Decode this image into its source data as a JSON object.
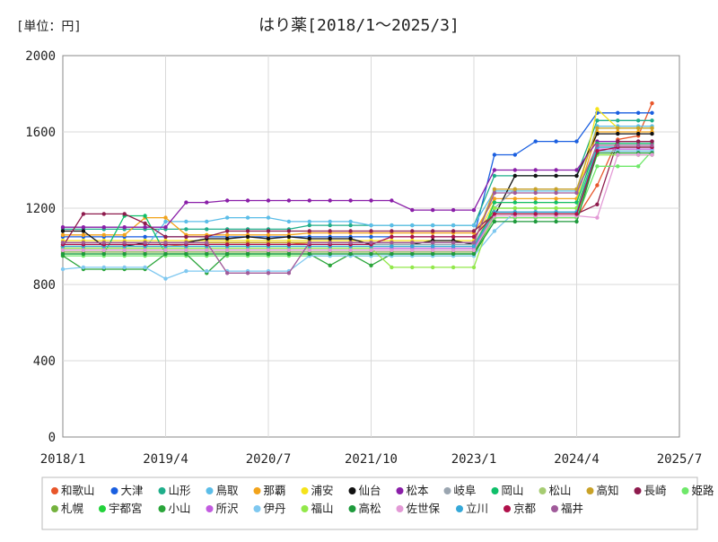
{
  "chart_data": {
    "type": "line",
    "title": "はり薬[2018/1～2025/3]",
    "unit_label": "[単位：円]",
    "xlabel": "",
    "ylabel": "",
    "ylim": [
      0,
      2000
    ],
    "y_ticks": [
      "0",
      "400",
      "800",
      "1200",
      "1600",
      "2000"
    ],
    "x_ticks": [
      "2018/1",
      "2019/4",
      "2020/7",
      "2021/10",
      "2023/1",
      "2024/4",
      "2025/7"
    ],
    "x_range": [
      "2018/1",
      "2025/7"
    ],
    "grid": true,
    "legend_position": "bottom",
    "x": [
      "2018/1",
      "2018/4",
      "2018/7",
      "2018/10",
      "2019/1",
      "2019/4",
      "2019/7",
      "2019/10",
      "2020/1",
      "2020/4",
      "2020/7",
      "2020/10",
      "2021/1",
      "2021/4",
      "2021/7",
      "2021/10",
      "2022/1",
      "2022/4",
      "2022/7",
      "2022/10",
      "2023/1",
      "2023/4",
      "2023/7",
      "2023/10",
      "2024/1",
      "2024/4",
      "2024/7",
      "2024/10",
      "2025/1",
      "2025/3"
    ],
    "series": [
      {
        "name": "和歌山",
        "color": "#e8562a",
        "values": [
          1000,
          1000,
          1000,
          1000,
          1000,
          1000,
          1010,
          1010,
          1010,
          1010,
          1010,
          1010,
          1020,
          1020,
          1020,
          1020,
          1020,
          1020,
          1020,
          1020,
          1020,
          1150,
          1150,
          1150,
          1150,
          1150,
          1320,
          1560,
          1580,
          1750
        ]
      },
      {
        "name": "大津",
        "color": "#1a5fe0",
        "values": [
          1050,
          1050,
          1050,
          1050,
          1050,
          1050,
          1050,
          1050,
          1050,
          1050,
          1050,
          1050,
          1050,
          1050,
          1050,
          1050,
          1050,
          1050,
          1050,
          1050,
          1050,
          1480,
          1480,
          1550,
          1550,
          1550,
          1700,
          1700,
          1700,
          1700
        ]
      },
      {
        "name": "山形",
        "color": "#1fae8a",
        "values": [
          1090,
          1090,
          1090,
          1090,
          1090,
          1090,
          1090,
          1090,
          1090,
          1090,
          1090,
          1090,
          1110,
          1110,
          1110,
          1110,
          1110,
          1110,
          1110,
          1110,
          1110,
          1370,
          1370,
          1370,
          1370,
          1370,
          1660,
          1660,
          1660,
          1660
        ]
      },
      {
        "name": "鳥取",
        "color": "#5bbde8",
        "values": [
          990,
          990,
          990,
          990,
          990,
          1130,
          1130,
          1130,
          1150,
          1150,
          1150,
          1130,
          1130,
          1130,
          1130,
          1110,
          1110,
          1110,
          1110,
          1110,
          1110,
          1290,
          1290,
          1290,
          1290,
          1290,
          1630,
          1630,
          1630,
          1630
        ]
      },
      {
        "name": "那覇",
        "color": "#f2a31b",
        "values": [
          1060,
          1060,
          1060,
          1060,
          1150,
          1150,
          1060,
          1060,
          1060,
          1060,
          1060,
          1060,
          1070,
          1070,
          1070,
          1070,
          1070,
          1070,
          1070,
          1070,
          1070,
          1250,
          1250,
          1250,
          1250,
          1250,
          1600,
          1600,
          1600,
          1600
        ]
      },
      {
        "name": "浦安",
        "color": "#f5e31a",
        "values": [
          1030,
          1030,
          1030,
          1030,
          1030,
          1030,
          1030,
          1030,
          1030,
          1030,
          1030,
          1030,
          1030,
          1030,
          1030,
          1030,
          1030,
          1030,
          1030,
          1030,
          1030,
          1230,
          1230,
          1230,
          1230,
          1230,
          1720,
          1620,
          1620,
          1620
        ]
      },
      {
        "name": "仙台",
        "color": "#111111",
        "values": [
          1080,
          1080,
          1000,
          1000,
          1020,
          1020,
          1020,
          1040,
          1040,
          1050,
          1040,
          1050,
          1040,
          1040,
          1040,
          1010,
          1010,
          1010,
          1030,
          1030,
          1010,
          1160,
          1370,
          1370,
          1370,
          1370,
          1590,
          1590,
          1590,
          1590
        ]
      },
      {
        "name": "松本",
        "color": "#8a1ea8",
        "values": [
          1100,
          1100,
          1100,
          1100,
          1100,
          1100,
          1230,
          1230,
          1240,
          1240,
          1240,
          1240,
          1240,
          1240,
          1240,
          1240,
          1240,
          1190,
          1190,
          1190,
          1190,
          1400,
          1400,
          1400,
          1400,
          1400,
          1550,
          1550,
          1550,
          1550
        ]
      },
      {
        "name": "岐阜",
        "color": "#9aa5b0",
        "values": [
          1010,
          1010,
          1010,
          1010,
          1010,
          1010,
          1010,
          1010,
          1010,
          1010,
          1010,
          1010,
          1010,
          1010,
          1010,
          1010,
          1010,
          1010,
          1010,
          1010,
          1010,
          1200,
          1300,
          1300,
          1300,
          1300,
          1500,
          1500,
          1500,
          1500
        ]
      },
      {
        "name": "岡山",
        "color": "#0fbf6a",
        "values": [
          960,
          960,
          960,
          1160,
          1160,
          960,
          960,
          960,
          960,
          960,
          960,
          960,
          960,
          960,
          960,
          960,
          960,
          960,
          960,
          960,
          960,
          1230,
          1230,
          1230,
          1230,
          1230,
          1540,
          1540,
          1540,
          1540
        ]
      },
      {
        "name": "松山",
        "color": "#a6cc72",
        "values": [
          980,
          980,
          980,
          980,
          980,
          980,
          980,
          980,
          980,
          980,
          980,
          980,
          980,
          980,
          980,
          980,
          980,
          980,
          980,
          980,
          980,
          1180,
          1180,
          1180,
          1180,
          1180,
          1500,
          1500,
          1500,
          1500
        ]
      },
      {
        "name": "高知",
        "color": "#c9a227",
        "values": [
          1020,
          1020,
          1020,
          1020,
          1020,
          1020,
          1020,
          1020,
          1020,
          1020,
          1020,
          1020,
          1020,
          1020,
          1020,
          1020,
          1020,
          1020,
          1020,
          1020,
          1020,
          1300,
          1300,
          1300,
          1300,
          1300,
          1620,
          1620,
          1620,
          1620
        ]
      },
      {
        "name": "長崎",
        "color": "#8e1b4d",
        "values": [
          1000,
          1170,
          1170,
          1170,
          1120,
          1050,
          1050,
          1050,
          1080,
          1080,
          1080,
          1080,
          1080,
          1080,
          1080,
          1080,
          1080,
          1080,
          1080,
          1080,
          1080,
          1170,
          1170,
          1170,
          1170,
          1170,
          1220,
          1550,
          1550,
          1550
        ]
      },
      {
        "name": "姫路",
        "color": "#6fe86a",
        "values": [
          950,
          950,
          950,
          950,
          950,
          950,
          950,
          950,
          950,
          950,
          950,
          950,
          950,
          950,
          950,
          950,
          950,
          950,
          950,
          950,
          950,
          1150,
          1150,
          1150,
          1150,
          1150,
          1420,
          1420,
          1420,
          1500
        ]
      },
      {
        "name": "札幌",
        "color": "#74b23e",
        "values": [
          970,
          970,
          970,
          970,
          970,
          970,
          970,
          970,
          970,
          970,
          970,
          970,
          970,
          970,
          970,
          970,
          970,
          970,
          970,
          970,
          970,
          1160,
          1160,
          1160,
          1160,
          1160,
          1500,
          1500,
          1500,
          1500
        ]
      },
      {
        "name": "宇都宮",
        "color": "#22d23a",
        "values": [
          1000,
          1000,
          1000,
          1000,
          1000,
          1000,
          1000,
          1000,
          1000,
          1000,
          1000,
          1000,
          1000,
          1000,
          1000,
          1000,
          1000,
          1000,
          1000,
          1000,
          1000,
          1200,
          1200,
          1200,
          1200,
          1200,
          1520,
          1520,
          1520,
          1520
        ]
      },
      {
        "name": "小山",
        "color": "#2aa53a",
        "values": [
          950,
          880,
          880,
          880,
          880,
          960,
          960,
          860,
          960,
          960,
          960,
          960,
          960,
          900,
          960,
          900,
          960,
          960,
          960,
          960,
          960,
          1170,
          1170,
          1170,
          1170,
          1170,
          1480,
          1480,
          1480,
          1480
        ]
      },
      {
        "name": "所沢",
        "color": "#c25be0",
        "values": [
          990,
          990,
          990,
          990,
          990,
          990,
          990,
          990,
          990,
          990,
          990,
          990,
          990,
          990,
          990,
          990,
          990,
          990,
          990,
          990,
          990,
          1180,
          1180,
          1180,
          1180,
          1180,
          1510,
          1510,
          1510,
          1510
        ]
      },
      {
        "name": "伊丹",
        "color": "#7fc8f0",
        "values": [
          880,
          890,
          890,
          890,
          890,
          830,
          870,
          870,
          870,
          870,
          870,
          870,
          950,
          950,
          950,
          950,
          950,
          950,
          950,
          950,
          950,
          1080,
          1180,
          1180,
          1180,
          1180,
          1500,
          1500,
          1500,
          1500
        ]
      },
      {
        "name": "福山",
        "color": "#92e84a",
        "values": [
          990,
          990,
          990,
          990,
          990,
          990,
          990,
          990,
          990,
          990,
          990,
          990,
          990,
          990,
          990,
          990,
          890,
          890,
          890,
          890,
          890,
          1200,
          1200,
          1200,
          1200,
          1200,
          1480,
          1480,
          1480,
          1480
        ]
      },
      {
        "name": "高松",
        "color": "#1e9a3c",
        "values": [
          960,
          960,
          960,
          960,
          960,
          960,
          960,
          960,
          960,
          960,
          960,
          960,
          960,
          960,
          960,
          960,
          960,
          960,
          960,
          960,
          960,
          1130,
          1130,
          1130,
          1130,
          1130,
          1490,
          1490,
          1490,
          1490
        ]
      },
      {
        "name": "佐世保",
        "color": "#e39ad6",
        "values": [
          980,
          980,
          980,
          980,
          980,
          980,
          980,
          980,
          980,
          980,
          980,
          980,
          980,
          980,
          980,
          980,
          980,
          980,
          980,
          980,
          980,
          1160,
          1160,
          1160,
          1160,
          1160,
          1150,
          1480,
          1480,
          1480
        ]
      },
      {
        "name": "立川",
        "color": "#35a8d8",
        "values": [
          1000,
          1000,
          1000,
          1000,
          1000,
          1000,
          1000,
          1000,
          1000,
          1000,
          1000,
          1000,
          1000,
          1000,
          1000,
          1000,
          1000,
          1000,
          1000,
          1000,
          1000,
          1180,
          1180,
          1180,
          1180,
          1180,
          1520,
          1520,
          1520,
          1520
        ]
      },
      {
        "name": "京都",
        "color": "#b0104a",
        "values": [
          1010,
          1010,
          1010,
          1010,
          1010,
          1010,
          1010,
          1010,
          1010,
          1010,
          1010,
          1010,
          1010,
          1010,
          1010,
          1010,
          1050,
          1050,
          1050,
          1050,
          1050,
          1170,
          1170,
          1170,
          1170,
          1170,
          1500,
          1520,
          1520,
          1520
        ]
      },
      {
        "name": "福井",
        "color": "#a05a9a",
        "values": [
          1020,
          1020,
          1020,
          1020,
          1020,
          1020,
          1020,
          1020,
          860,
          860,
          860,
          860,
          1020,
          1020,
          1020,
          1020,
          1020,
          1020,
          1020,
          1020,
          1020,
          1280,
          1280,
          1280,
          1280,
          1280,
          1530,
          1530,
          1530,
          1530
        ]
      }
    ]
  }
}
